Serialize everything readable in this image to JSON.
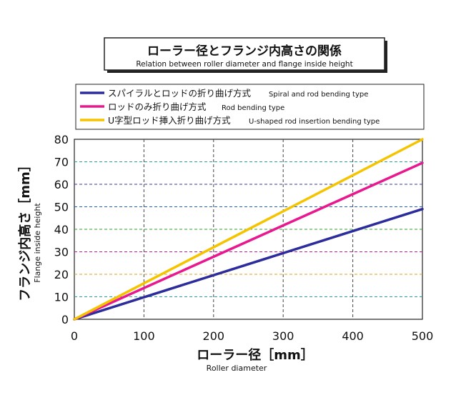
{
  "title": {
    "main": "ローラー径とフランジ内高さの関係",
    "sub": "Relation between roller diameter and flange inside height"
  },
  "legend": {
    "entries": [
      {
        "label_ja": "スパイラルとロッドの折り曲げ方式",
        "label_en": "Spiral and rod bending type",
        "color": "#2c2c9c"
      },
      {
        "label_ja": "ロッドのみ折り曲げ方式",
        "label_en": "Rod bending type",
        "color": "#e8198f"
      },
      {
        "label_ja": "U字型ロッド挿入折り曲げ方式",
        "label_en": "U-shaped rod insertion bending type",
        "color": "#f5c400"
      }
    ]
  },
  "axes": {
    "ylabel_ja": "フランジ内高さ［mm］",
    "ylabel_en": "Flange inside height",
    "xlabel_ja": "ローラー径［mm］",
    "xlabel_en": "Roller diameter"
  },
  "chart_data": {
    "type": "line",
    "title": "ローラー径とフランジ内高さの関係",
    "subtitle": "Relation between roller diameter and flange inside height",
    "xlabel": "ローラー径［mm］ Roller diameter",
    "ylabel": "フランジ内高さ［mm］ Flange inside height",
    "xlim": [
      0,
      500
    ],
    "ylim": [
      0,
      80
    ],
    "x_ticks": [
      0,
      100,
      200,
      300,
      400,
      500
    ],
    "y_ticks": [
      0,
      10,
      20,
      30,
      40,
      50,
      60,
      70,
      80
    ],
    "grid": true,
    "legend_position": "top",
    "series": [
      {
        "name": "スパイラルとロッドの折り曲げ方式 Spiral and rod bending type",
        "color": "#2c2c9c",
        "x": [
          0,
          500
        ],
        "y": [
          0,
          49
        ]
      },
      {
        "name": "ロッドのみ折り曲げ方式 Rod bending type",
        "color": "#e8198f",
        "x": [
          0,
          500
        ],
        "y": [
          0,
          69.5
        ]
      },
      {
        "name": "U字型ロッド挿入折り曲げ方式 U-shaped rod insertion bending type",
        "color": "#f5c400",
        "x": [
          0,
          500
        ],
        "y": [
          0,
          80
        ]
      }
    ]
  }
}
